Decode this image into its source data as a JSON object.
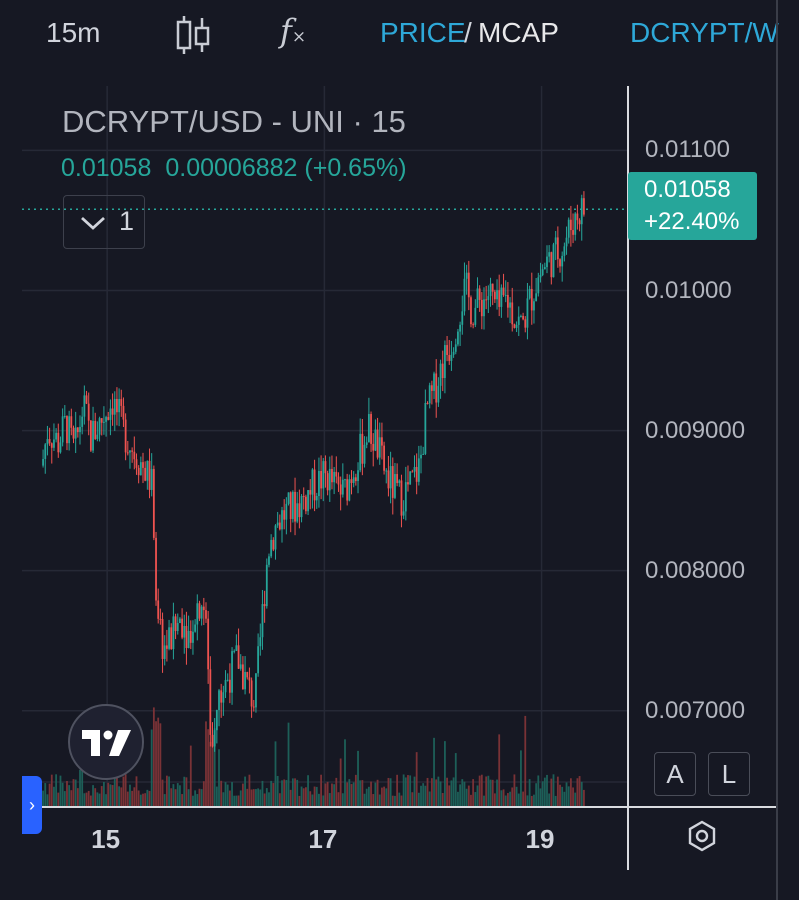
{
  "toolbar": {
    "interval": "15m",
    "price_tab": "PRICE",
    "slash": "/",
    "mcap_tab": "MCAP",
    "pair_tab": "DCRYPT/W",
    "indicators_icon": "fx-icon",
    "chart_type_icon": "candlestick-icon"
  },
  "legend": {
    "title": "DCRYPT/USD - UNI · 15",
    "value": "0.01058",
    "change": "0.00006882 (+0.65%)",
    "collapse_count": "1"
  },
  "scale": {
    "last_price": "0.01058",
    "last_change": "+22.40%",
    "buttons": {
      "auto": "A",
      "log": "L"
    }
  },
  "colors": {
    "up": "#26a69a",
    "down": "#ef5350",
    "background": "#161823",
    "accent": "#2ea8d8"
  },
  "chart_data": {
    "type": "candlestick",
    "title": "DCRYPT/USD - UNI · 15",
    "y_ticks": [
      "0.01100",
      "0.01000",
      "0.009000",
      "0.008000",
      "0.007000"
    ],
    "y_tick_values": [
      0.011,
      0.01,
      0.009,
      0.008,
      0.007
    ],
    "x_ticks": [
      "15",
      "17",
      "19"
    ],
    "x_tick_values": [
      15,
      17,
      19
    ],
    "xlim": [
      14.4,
      19.4
    ],
    "ylim": [
      0.00652,
      0.01146
    ],
    "last_price": 0.01058,
    "grid": true,
    "price_path": [
      [
        14.4,
        0.00875
      ],
      [
        14.45,
        0.009
      ],
      [
        14.55,
        0.00892
      ],
      [
        14.62,
        0.00905
      ],
      [
        14.7,
        0.00885
      ],
      [
        14.78,
        0.00918
      ],
      [
        14.85,
        0.00895
      ],
      [
        14.95,
        0.00908
      ],
      [
        15.05,
        0.00922
      ],
      [
        15.15,
        0.009
      ],
      [
        15.25,
        0.00885
      ],
      [
        15.35,
        0.00872
      ],
      [
        15.42,
        0.0086
      ],
      [
        15.46,
        0.0076
      ],
      [
        15.52,
        0.00745
      ],
      [
        15.6,
        0.00752
      ],
      [
        15.68,
        0.00768
      ],
      [
        15.75,
        0.00755
      ],
      [
        15.82,
        0.00775
      ],
      [
        15.88,
        0.0078
      ],
      [
        15.92,
        0.00752
      ],
      [
        15.96,
        0.0067
      ],
      [
        16.02,
        0.00705
      ],
      [
        16.1,
        0.00722
      ],
      [
        16.2,
        0.00738
      ],
      [
        16.28,
        0.0072
      ],
      [
        16.36,
        0.00705
      ],
      [
        16.42,
        0.0076
      ],
      [
        16.48,
        0.00815
      ],
      [
        16.55,
        0.00832
      ],
      [
        16.62,
        0.0084
      ],
      [
        16.72,
        0.00845
      ],
      [
        16.82,
        0.00852
      ],
      [
        16.92,
        0.00862
      ],
      [
        17.02,
        0.00868
      ],
      [
        17.1,
        0.0086
      ],
      [
        17.18,
        0.00855
      ],
      [
        17.26,
        0.00872
      ],
      [
        17.34,
        0.00886
      ],
      [
        17.4,
        0.00902
      ],
      [
        17.48,
        0.0089
      ],
      [
        17.56,
        0.0087
      ],
      [
        17.64,
        0.00858
      ],
      [
        17.7,
        0.00852
      ],
      [
        17.8,
        0.00862
      ],
      [
        17.88,
        0.00875
      ],
      [
        17.94,
        0.00915
      ],
      [
        18.0,
        0.00925
      ],
      [
        18.06,
        0.00942
      ],
      [
        18.12,
        0.00955
      ],
      [
        18.18,
        0.00965
      ],
      [
        18.24,
        0.00985
      ],
      [
        18.3,
        0.01002
      ],
      [
        18.36,
        0.00985
      ],
      [
        18.44,
        0.00992
      ],
      [
        18.52,
        0.00998
      ],
      [
        18.6,
        0.00985
      ],
      [
        18.68,
        0.00995
      ],
      [
        18.76,
        0.0098
      ],
      [
        18.82,
        0.00975
      ],
      [
        18.88,
        0.0099
      ],
      [
        18.96,
        0.01008
      ],
      [
        19.04,
        0.0102
      ],
      [
        19.12,
        0.01025
      ],
      [
        19.2,
        0.01032
      ],
      [
        19.28,
        0.01048
      ],
      [
        19.36,
        0.01058
      ]
    ]
  }
}
